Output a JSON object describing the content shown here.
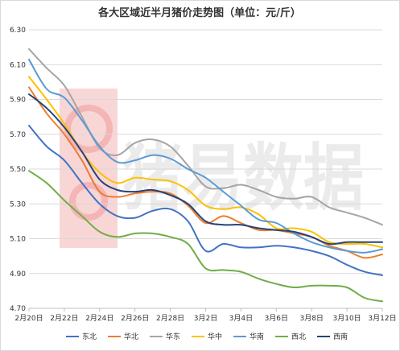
{
  "chart_data": {
    "type": "line",
    "title": "各大区域近半月猪价走势图（单位：元/斤）",
    "x": [
      "2月20日",
      "2月21日",
      "2月22日",
      "2月23日",
      "2月24日",
      "2月25日",
      "2月26日",
      "2月27日",
      "2月28日",
      "3月1日",
      "3月2日",
      "3月3日",
      "3月4日",
      "3月5日",
      "3月6日",
      "3月7日",
      "3月8日",
      "3月9日",
      "3月10日",
      "3月11日",
      "3月12日"
    ],
    "x_tick_labels": [
      "2月20日",
      "2月22日",
      "2月24日",
      "2月26日",
      "2月28日",
      "3月2日",
      "3月4日",
      "3月6日",
      "3月8日",
      "3月10日",
      "3月12日"
    ],
    "y_tick_labels": [
      "4.70",
      "4.90",
      "5.10",
      "5.30",
      "5.50",
      "5.70",
      "5.90",
      "6.10",
      "6.30"
    ],
    "ylim": [
      4.7,
      6.3
    ],
    "y_ticks": [
      4.7,
      4.9,
      5.1,
      5.3,
      5.5,
      5.7,
      5.9,
      6.1,
      6.3
    ],
    "grid": "horizontal",
    "legend_position": "bottom",
    "series": [
      {
        "name": "东北",
        "color": "#4472c4",
        "values": [
          5.75,
          5.63,
          5.55,
          5.42,
          5.3,
          5.23,
          5.22,
          5.26,
          5.27,
          5.2,
          5.03,
          5.07,
          5.05,
          5.05,
          5.06,
          5.05,
          5.03,
          5.0,
          4.95,
          4.91,
          4.89
        ]
      },
      {
        "name": "华北",
        "color": "#ed7d31",
        "values": [
          5.97,
          5.82,
          5.7,
          5.55,
          5.37,
          5.34,
          5.36,
          5.37,
          5.36,
          5.29,
          5.19,
          5.23,
          5.19,
          5.15,
          5.15,
          5.13,
          5.11,
          5.06,
          5.03,
          4.99,
          5.01
        ]
      },
      {
        "name": "华东",
        "color": "#a5a5a5",
        "values": [
          6.19,
          6.08,
          5.98,
          5.8,
          5.62,
          5.58,
          5.65,
          5.67,
          5.63,
          5.52,
          5.4,
          5.39,
          5.41,
          5.38,
          5.34,
          5.33,
          5.34,
          5.28,
          5.25,
          5.22,
          5.18
        ]
      },
      {
        "name": "华中",
        "color": "#ffc000",
        "values": [
          6.03,
          5.9,
          5.76,
          5.6,
          5.48,
          5.42,
          5.45,
          5.44,
          5.43,
          5.38,
          5.29,
          5.27,
          5.28,
          5.24,
          5.16,
          5.16,
          5.14,
          5.08,
          5.07,
          5.07,
          5.05
        ]
      },
      {
        "name": "华南",
        "color": "#5b9bd5",
        "values": [
          6.13,
          5.96,
          5.91,
          5.78,
          5.63,
          5.54,
          5.55,
          5.58,
          5.56,
          5.5,
          5.45,
          5.37,
          5.29,
          5.21,
          5.19,
          5.13,
          5.08,
          5.05,
          5.03,
          5.02,
          5.04
        ]
      },
      {
        "name": "西北",
        "color": "#70ad47",
        "values": [
          5.49,
          5.42,
          5.32,
          5.23,
          5.14,
          5.11,
          5.13,
          5.13,
          5.11,
          5.07,
          4.93,
          4.92,
          4.91,
          4.87,
          4.84,
          4.82,
          4.83,
          4.83,
          4.82,
          4.76,
          4.74
        ]
      },
      {
        "name": "西南",
        "color": "#264478",
        "values": [
          5.93,
          5.85,
          5.74,
          5.6,
          5.44,
          5.38,
          5.37,
          5.38,
          5.35,
          5.3,
          5.2,
          5.18,
          5.18,
          5.16,
          5.15,
          5.14,
          5.11,
          5.07,
          5.08,
          5.08,
          5.08
        ]
      }
    ]
  },
  "watermark": {
    "text": "猪易数据"
  }
}
